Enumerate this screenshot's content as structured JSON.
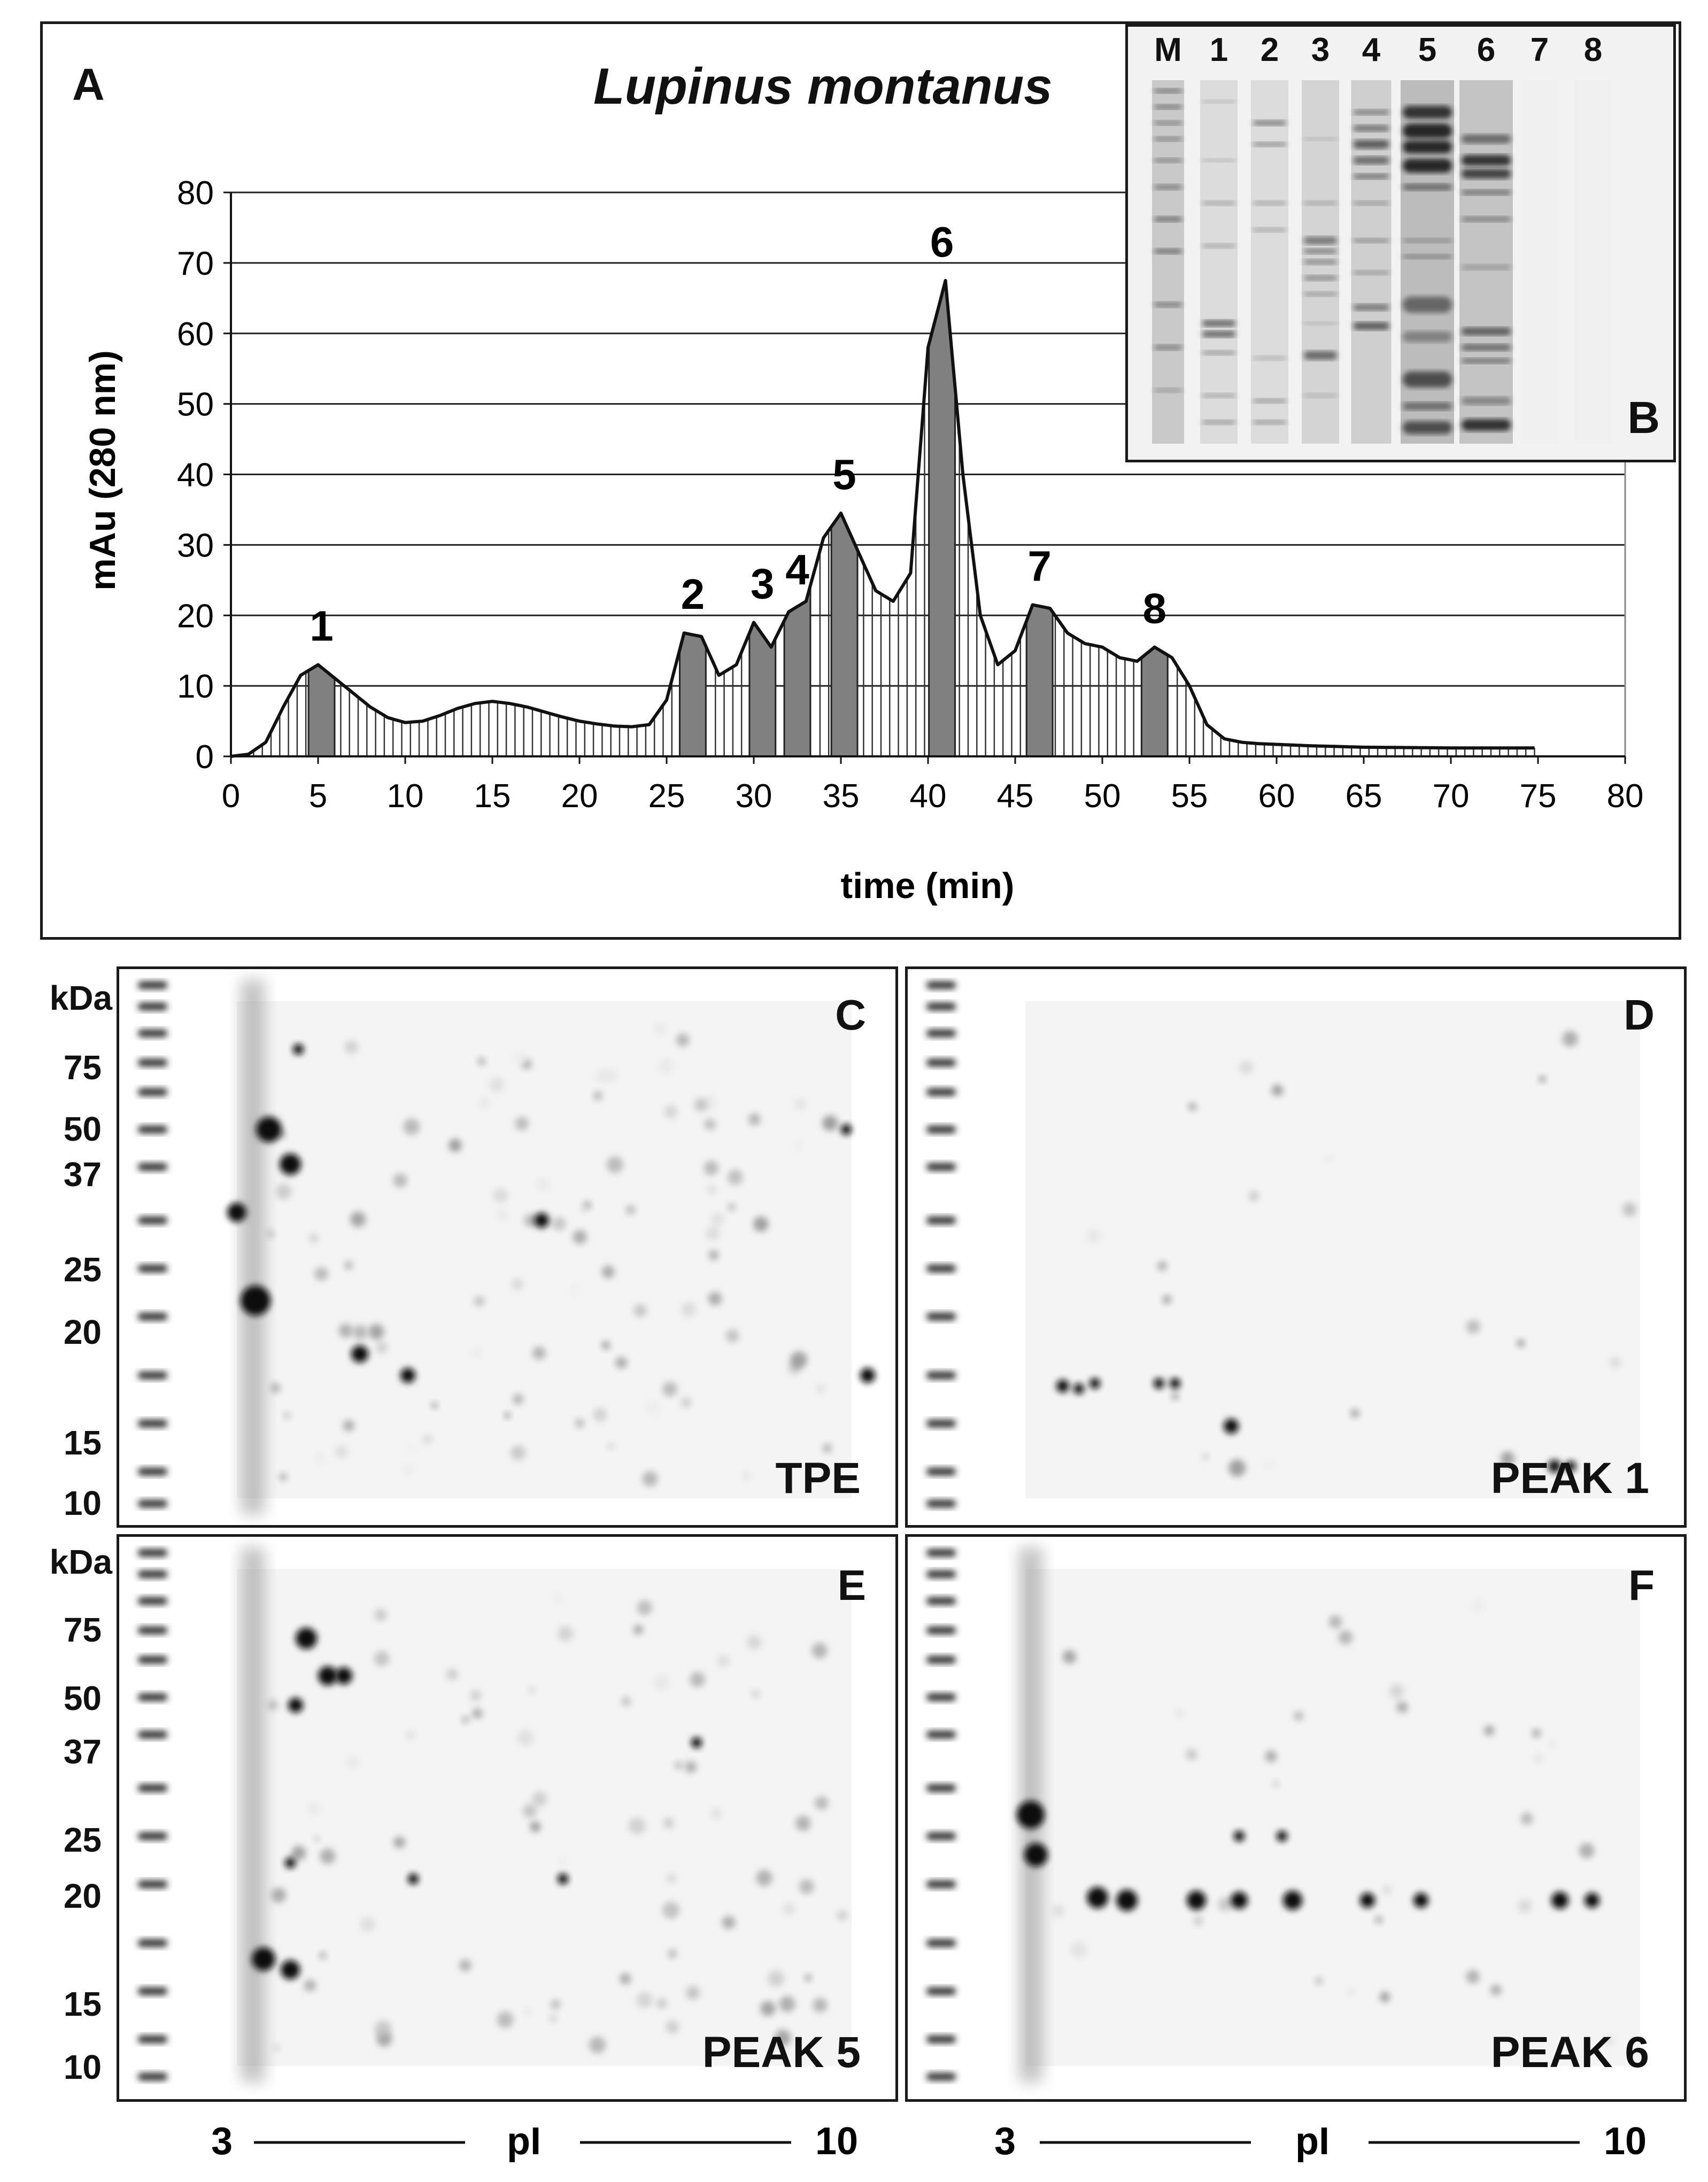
{
  "panel_a": {
    "letter": "A",
    "title": "Lupinus montanus"
  },
  "chart_data": {
    "type": "area",
    "xlabel": "time (min)",
    "ylabel": "mAu (280 nm)",
    "xlim": [
      0,
      80
    ],
    "ylim": [
      0,
      80
    ],
    "x_ticks": [
      "0",
      "5",
      "10",
      "15",
      "20",
      "25",
      "30",
      "35",
      "40",
      "45",
      "50",
      "55",
      "60",
      "65",
      "70",
      "75",
      "80"
    ],
    "y_ticks": [
      "0",
      "10",
      "20",
      "30",
      "40",
      "50",
      "60",
      "70",
      "80"
    ],
    "grid": "horizontal",
    "curve": {
      "x": [
        0,
        1,
        2,
        3,
        4,
        5,
        6,
        7,
        8,
        9,
        10,
        11,
        12,
        13,
        14,
        15,
        16,
        17,
        18,
        19,
        20,
        21,
        22,
        23,
        24,
        25,
        26,
        27,
        28,
        29,
        30,
        31,
        32,
        33,
        34,
        35,
        36,
        37,
        38,
        39,
        40,
        41,
        42,
        43,
        44,
        45,
        46,
        47,
        48,
        49,
        50,
        51,
        52,
        53,
        54,
        55,
        56,
        57,
        58,
        59,
        60,
        62,
        65,
        70,
        75
      ],
      "y": [
        0,
        0.3,
        2,
        7,
        11.5,
        13,
        11,
        9,
        7,
        5.5,
        4.8,
        5,
        5.8,
        6.8,
        7.5,
        7.8,
        7.5,
        7,
        6.3,
        5.6,
        5,
        4.6,
        4.3,
        4.2,
        4.5,
        8,
        17.5,
        17,
        11.5,
        13,
        19,
        15.5,
        20.5,
        22,
        31,
        34.5,
        29,
        23.5,
        22,
        26,
        58,
        67.5,
        40,
        20,
        13,
        15,
        21.5,
        21,
        17.5,
        16,
        15.5,
        14,
        13.5,
        15.5,
        14,
        10,
        4.5,
        2.5,
        2,
        1.8,
        1.7,
        1.5,
        1.3,
        1.2,
        1.2
      ]
    },
    "peaks": [
      {
        "label": "1",
        "x": 5.2,
        "y": 13
      },
      {
        "label": "2",
        "x": 26.5,
        "y": 17.5
      },
      {
        "label": "3",
        "x": 30.5,
        "y": 19
      },
      {
        "label": "4",
        "x": 32.5,
        "y": 21
      },
      {
        "label": "5",
        "x": 35.2,
        "y": 34.5
      },
      {
        "label": "6",
        "x": 40.8,
        "y": 67.5
      },
      {
        "label": "7",
        "x": 46.4,
        "y": 21.5
      },
      {
        "label": "8",
        "x": 53,
        "y": 15.5
      }
    ],
    "series": [
      {
        "values": "curve"
      }
    ],
    "fraction_bar_color": "#808080"
  },
  "inset_b": {
    "letter": "B",
    "lanes": [
      "M",
      "1",
      "2",
      "3",
      "4",
      "5",
      "6",
      "7",
      "8"
    ]
  },
  "gels": [
    {
      "id": "C",
      "letter": "C",
      "name": "TPE"
    },
    {
      "id": "D",
      "letter": "D",
      "name": "PEAK 1"
    },
    {
      "id": "E",
      "letter": "E",
      "name": "PEAK 5"
    },
    {
      "id": "F",
      "letter": "F",
      "name": "PEAK 6"
    }
  ],
  "kda_top": {
    "unit": "kDa",
    "marks": [
      "75",
      "50",
      "37",
      "25",
      "20",
      "15",
      "10"
    ]
  },
  "kda_bottom": {
    "unit": "kDa",
    "marks": [
      "75",
      "50",
      "37",
      "25",
      "20",
      "15",
      "10"
    ]
  },
  "pi_axis": {
    "left": "3",
    "mid": "pI",
    "right": "10"
  }
}
